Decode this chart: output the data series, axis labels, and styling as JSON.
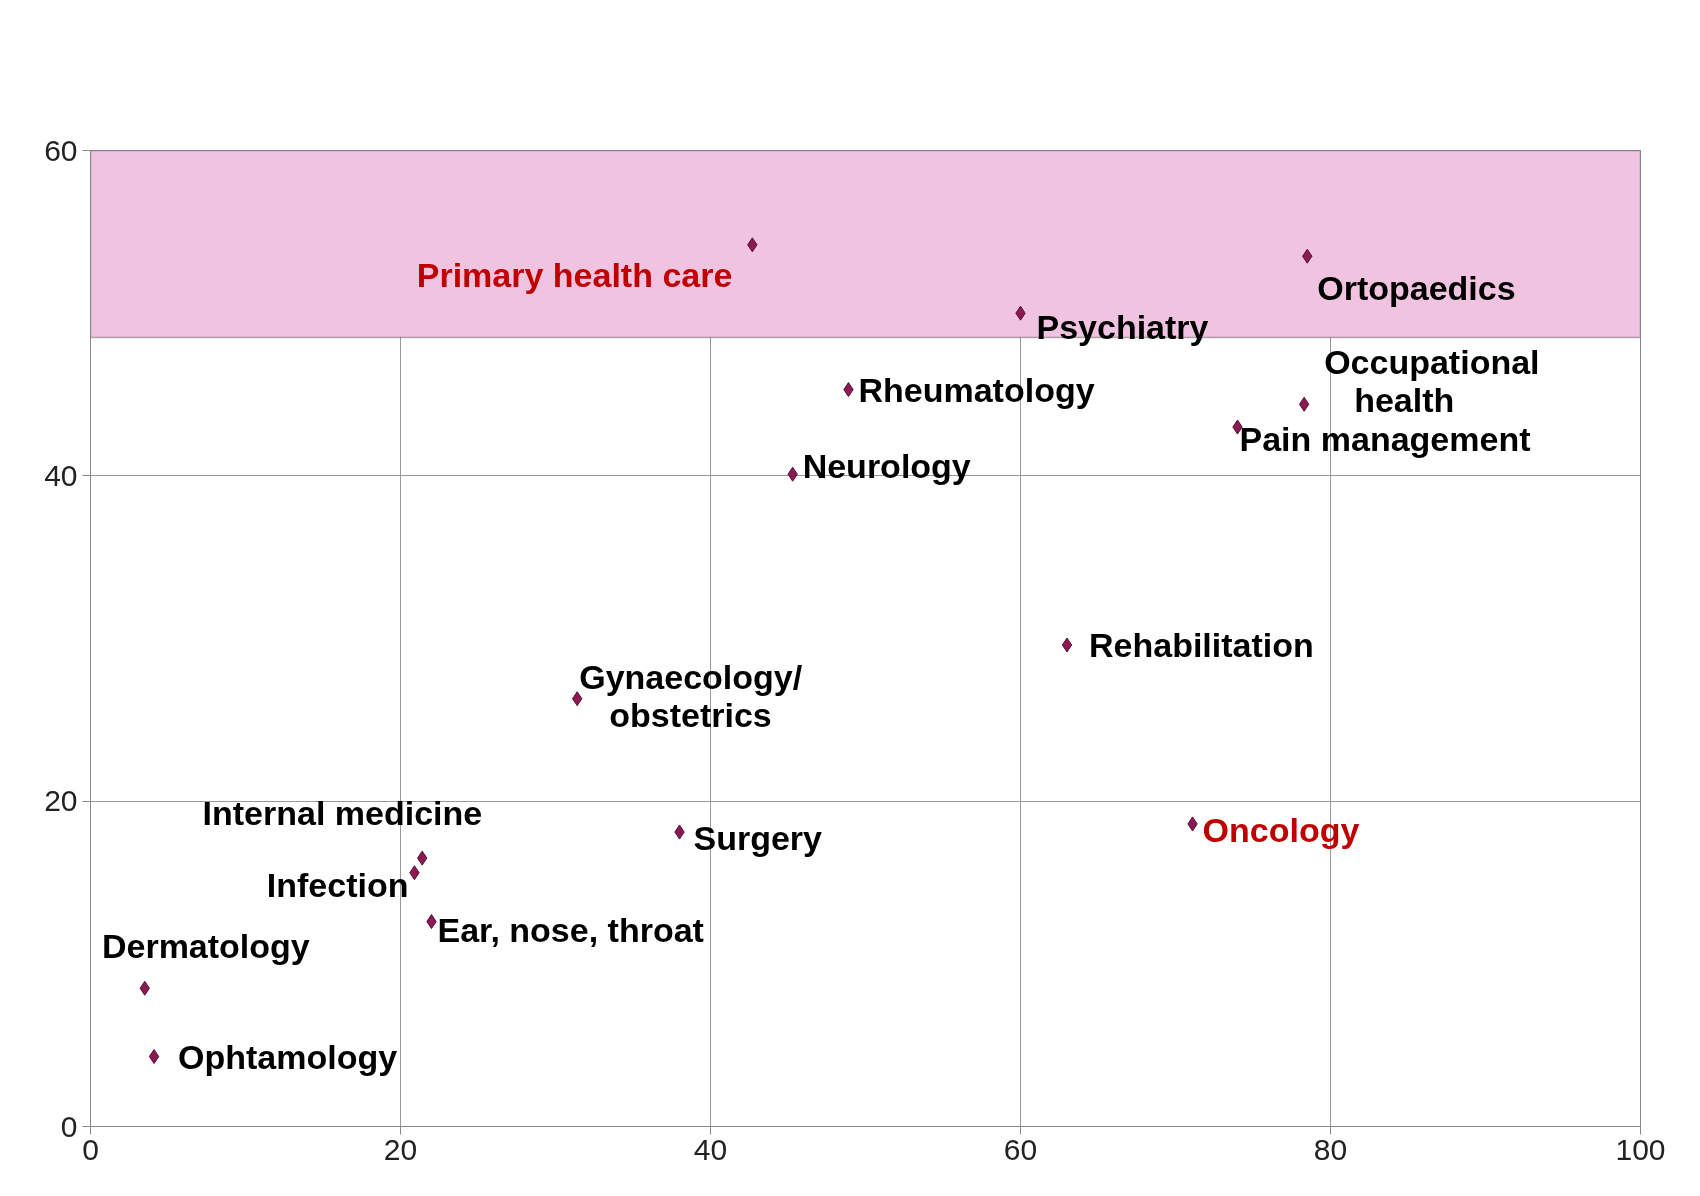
{
  "chart_data": {
    "type": "scatter",
    "x": [
      42.7,
      78.5,
      60.0,
      48.9,
      78.3,
      74.0,
      45.3,
      63.0,
      31.4,
      38.0,
      71.1,
      21.4,
      20.9,
      22.0,
      3.5,
      4.1
    ],
    "values": [
      54.2,
      53.5,
      50.0,
      45.3,
      44.4,
      43.0,
      40.1,
      29.6,
      26.3,
      18.1,
      18.6,
      16.5,
      15.6,
      12.6,
      8.5,
      4.3
    ],
    "color": "#8b1a52",
    "marker": "diamond",
    "xlim": [
      0,
      100
    ],
    "ylim": [
      0,
      60
    ],
    "xticks": [
      0,
      20,
      40,
      60,
      80,
      100
    ],
    "yticks": [
      0,
      20,
      40,
      60
    ],
    "grid": true,
    "bands": [
      {
        "axis": "y",
        "from": 48.5,
        "to": 60,
        "color": "#f0c4e0"
      }
    ],
    "annotations": [
      {
        "text": "Primary health care",
        "x": 42.7,
        "y": 54.2
      },
      {
        "text": "Ortopaedics",
        "x": 78.5,
        "y": 53.5
      },
      {
        "text": "Psychiatry",
        "x": 60.0,
        "y": 50.0
      },
      {
        "text": "Rheumatology",
        "x": 48.9,
        "y": 45.3
      },
      {
        "text": "Occupational\nhealth",
        "x": 78.3,
        "y": 44.4
      },
      {
        "text": "Pain management",
        "x": 74.0,
        "y": 43.0
      },
      {
        "text": "Neurology",
        "x": 45.3,
        "y": 40.1
      },
      {
        "text": "Rehabilitation",
        "x": 63.0,
        "y": 29.6
      },
      {
        "text": "Gynaecology/\nobstetrics",
        "x": 31.4,
        "y": 26.3
      },
      {
        "text": "Surgery",
        "x": 38.0,
        "y": 18.1
      },
      {
        "text": "Oncology",
        "x": 71.1,
        "y": 18.6
      },
      {
        "text": "Internal medicine",
        "x": 21.4,
        "y": 16.5
      },
      {
        "text": "Infection",
        "x": 20.9,
        "y": 15.6
      },
      {
        "text": "Ear, nose, throat",
        "x": 22.0,
        "y": 12.6
      },
      {
        "text": "Dermatology",
        "x": 3.5,
        "y": 8.5
      },
      {
        "text": "Ophtamology",
        "x": 4.1,
        "y": 4.3
      }
    ]
  }
}
